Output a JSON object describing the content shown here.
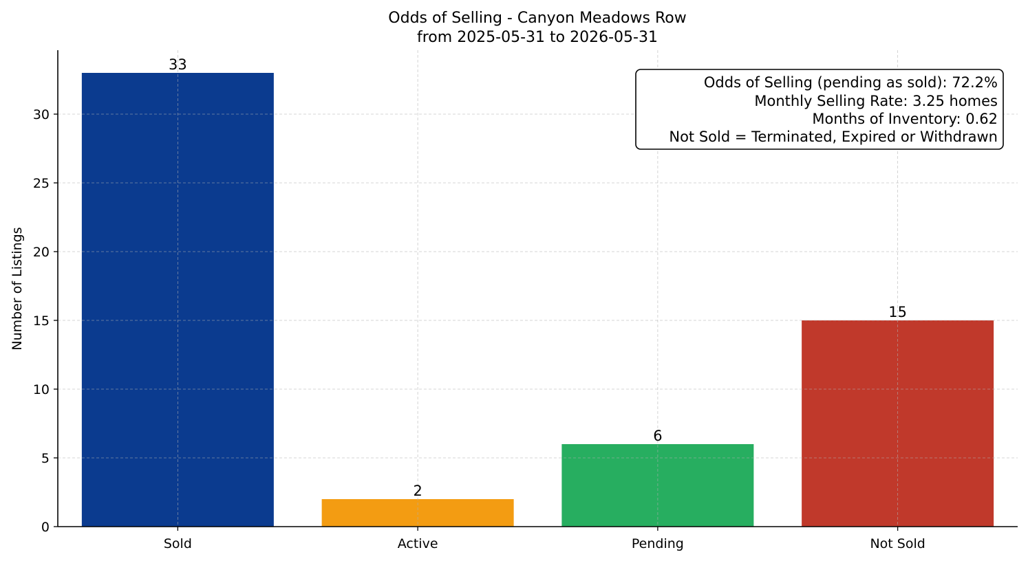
{
  "chart_data": {
    "type": "bar",
    "title": "Odds of Selling - Canyon Meadows Row",
    "subtitle": "from 2025-05-31 to 2026-05-31",
    "xlabel": "",
    "ylabel": "Number of Listings",
    "categories": [
      "Sold",
      "Active",
      "Pending",
      "Not Sold"
    ],
    "values": [
      33,
      2,
      6,
      15
    ],
    "colors": [
      "#0b3b8f",
      "#f39c12",
      "#27ae60",
      "#c0392b"
    ],
    "ylim": [
      0,
      34.65
    ],
    "yticks": [
      0,
      5,
      10,
      15,
      20,
      25,
      30
    ],
    "grid": true,
    "annotation": {
      "placement": "top-right",
      "lines": [
        "Odds of Selling (pending as sold): 72.2%",
        "Monthly Selling Rate: 3.25 homes",
        "Months of Inventory: 0.62",
        "Not Sold = Terminated, Expired or Withdrawn"
      ]
    }
  }
}
